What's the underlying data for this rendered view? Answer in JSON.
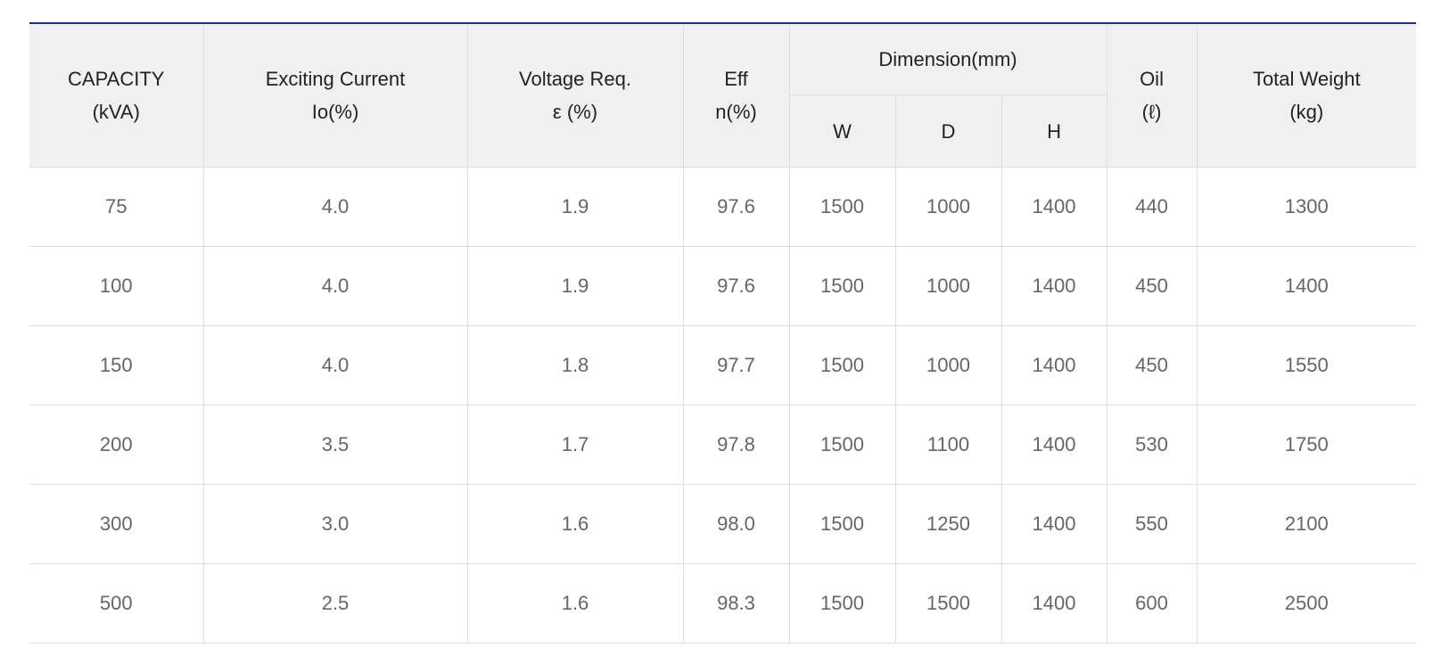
{
  "table": {
    "headers": {
      "capacity": [
        "CAPACITY",
        "(kVA)"
      ],
      "exciting_current": [
        "Exciting Current",
        "Io(%)"
      ],
      "voltage_req": [
        "Voltage Req.",
        "ε (%)"
      ],
      "eff": [
        "Eff",
        "n(%)"
      ],
      "dimension": "Dimension(mm)",
      "dimension_sub": [
        "W",
        "D",
        "H"
      ],
      "oil": [
        "Oil",
        "(ℓ)"
      ],
      "total_weight": [
        "Total Weight",
        "(kg)"
      ]
    },
    "rows": [
      [
        "75",
        "4.0",
        "1.9",
        "97.6",
        "1500",
        "1000",
        "1400",
        "440",
        "1300"
      ],
      [
        "100",
        "4.0",
        "1.9",
        "97.6",
        "1500",
        "1000",
        "1400",
        "450",
        "1400"
      ],
      [
        "150",
        "4.0",
        "1.8",
        "97.7",
        "1500",
        "1000",
        "1400",
        "450",
        "1550"
      ],
      [
        "200",
        "3.5",
        "1.7",
        "97.8",
        "1500",
        "1100",
        "1400",
        "530",
        "1750"
      ],
      [
        "300",
        "3.0",
        "1.6",
        "98.0",
        "1500",
        "1250",
        "1400",
        "550",
        "2100"
      ],
      [
        "500",
        "2.5",
        "1.6",
        "98.3",
        "1500",
        "1500",
        "1400",
        "600",
        "2500"
      ]
    ]
  },
  "colors": {
    "top_border": "#1f2f86",
    "header_bg": "#f0f0f0",
    "grid_line": "#dedede",
    "header_text": "#222222",
    "cell_text": "#666666"
  }
}
